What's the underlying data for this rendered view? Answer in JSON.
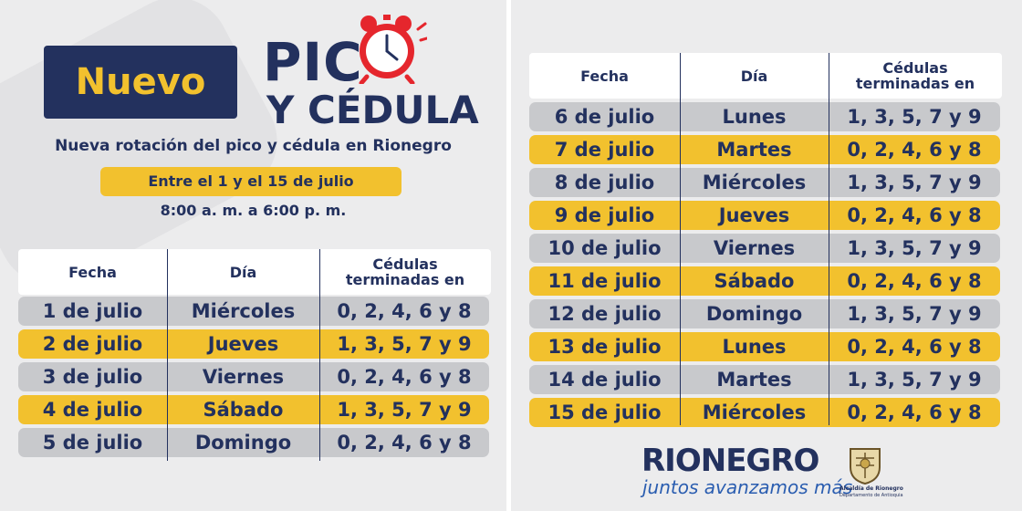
{
  "header": {
    "badge": "Nuevo",
    "title_line1": "PIC",
    "title_line2": "Y CÉDULA",
    "subtitle": "Nueva rotación del pico y cédula en Rionegro",
    "date_range": "Entre el 1 y el 15 de julio",
    "hours": "8:00 a. m. a 6:00 p. m."
  },
  "table": {
    "headers": {
      "fecha": "Fecha",
      "dia": "Día",
      "cedulas_1": "Cédulas",
      "cedulas_2": "terminadas en"
    },
    "left_rows": [
      {
        "fecha": "1 de julio",
        "dia": "Miércoles",
        "cedulas": "0, 2, 4, 6 y 8",
        "color": "gray"
      },
      {
        "fecha": "2 de julio",
        "dia": "Jueves",
        "cedulas": "1, 3, 5, 7 y 9",
        "color": "yellow"
      },
      {
        "fecha": "3 de julio",
        "dia": "Viernes",
        "cedulas": "0, 2, 4, 6 y 8",
        "color": "gray"
      },
      {
        "fecha": "4 de julio",
        "dia": "Sábado",
        "cedulas": "1, 3, 5, 7 y 9",
        "color": "yellow"
      },
      {
        "fecha": "5 de julio",
        "dia": "Domingo",
        "cedulas": "0, 2, 4, 6 y 8",
        "color": "gray"
      }
    ],
    "right_rows": [
      {
        "fecha": "6 de julio",
        "dia": "Lunes",
        "cedulas": "1, 3, 5, 7 y 9",
        "color": "gray"
      },
      {
        "fecha": "7 de julio",
        "dia": "Martes",
        "cedulas": "0, 2, 4, 6 y 8",
        "color": "yellow"
      },
      {
        "fecha": "8 de julio",
        "dia": "Miércoles",
        "cedulas": "1, 3, 5, 7 y 9",
        "color": "gray"
      },
      {
        "fecha": "9 de julio",
        "dia": "Jueves",
        "cedulas": "0, 2, 4, 6 y 8",
        "color": "yellow"
      },
      {
        "fecha": "10 de julio",
        "dia": "Viernes",
        "cedulas": "1, 3, 5, 7 y 9",
        "color": "gray"
      },
      {
        "fecha": "11 de julio",
        "dia": "Sábado",
        "cedulas": "0, 2, 4, 6 y 8",
        "color": "yellow"
      },
      {
        "fecha": "12 de julio",
        "dia": "Domingo",
        "cedulas": "1, 3, 5, 7 y 9",
        "color": "gray"
      },
      {
        "fecha": "13 de julio",
        "dia": "Lunes",
        "cedulas": "0, 2, 4, 6 y 8",
        "color": "yellow"
      },
      {
        "fecha": "14 de julio",
        "dia": "Martes",
        "cedulas": "1, 3, 5, 7 y 9",
        "color": "gray"
      },
      {
        "fecha": "15 de julio",
        "dia": "Miércoles",
        "cedulas": "0, 2, 4, 6 y 8",
        "color": "yellow"
      }
    ]
  },
  "footer": {
    "brand": "RIONEGRO",
    "slogan": "juntos avanzamos más",
    "crest_caption": "Alcaldía de Rionegro",
    "crest_subcaption": "Departamento de Antioquia"
  },
  "colors": {
    "navy": "#23315e",
    "yellow": "#f2c12e",
    "gray_row": "#c8c9cc",
    "clock_red": "#e5262d",
    "background": "#ececed"
  },
  "icons": [
    "alarm-clock-icon",
    "coat-of-arms-icon"
  ]
}
